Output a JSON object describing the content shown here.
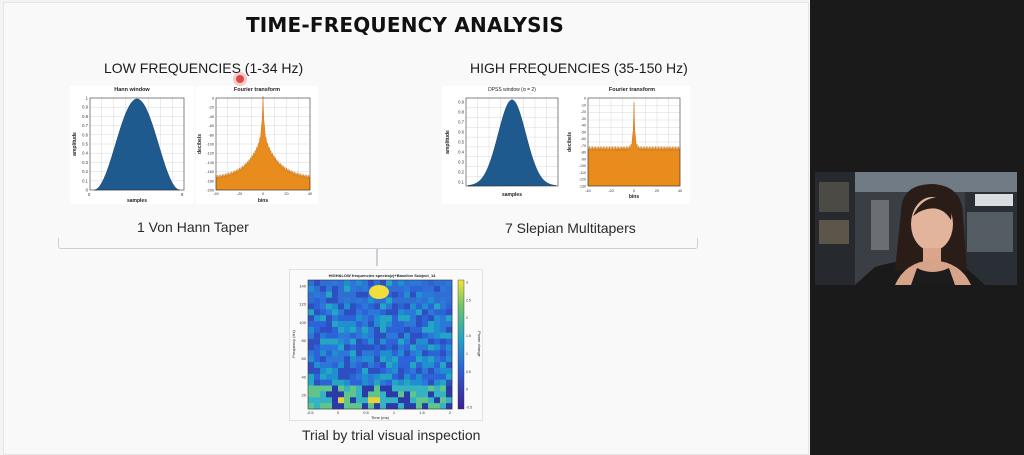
{
  "slide": {
    "title": "TIME-FREQUENCY ANALYSIS",
    "low_header": "LOW FREQUENCIES (1-34 Hz)",
    "high_header": "HIGH FREQUENCIES (35-150 Hz)",
    "low_caption": "1 Von Hann Taper",
    "high_caption": "7 Slepian Multitapers",
    "bottom_caption": "Trial by trial visual inspection"
  },
  "plots": {
    "hann": {
      "title": "Hann window",
      "ylabel": "amplitude",
      "xlabel": "samples",
      "yticks": [
        "1",
        "0.9",
        "0.8",
        "0.7",
        "0.6",
        "0.5",
        "0.4",
        "0.3",
        "0.2",
        "0.1",
        "0"
      ],
      "xticks": [
        "0",
        "8"
      ]
    },
    "fft_low": {
      "title": "Fourier transform",
      "ylabel": "decibels",
      "xlabel": "bins",
      "yticks": [
        "0",
        "-20",
        "-40",
        "-60",
        "-80",
        "-100",
        "-120",
        "-140",
        "-160",
        "-180",
        "-200"
      ],
      "xticks": [
        "-40",
        "-20",
        "0",
        "20",
        "40"
      ]
    },
    "dpss": {
      "title": "DPSS window (α = 2)",
      "ylabel": "amplitude",
      "xlabel": "samples",
      "yticks": [
        "0.9",
        "0.8",
        "0.7",
        "0.6",
        "0.5",
        "0.4",
        "0.3",
        "0.2",
        "0.1"
      ],
      "xticks": []
    },
    "fft_high": {
      "title": "Fourier transform",
      "ylabel": "decibels",
      "xlabel": "bins",
      "yticks": [
        "0",
        "-10",
        "-20",
        "-30",
        "-40",
        "-50",
        "-60",
        "-70",
        "-80",
        "-90",
        "-100",
        "-110",
        "-120",
        "-130"
      ],
      "xticks": [
        "-40",
        "-20",
        "0",
        "20",
        "40"
      ]
    },
    "spectrogram": {
      "title": "HIGH&LOW frequencies spectra(z)+Baseline Subject_14",
      "xlabel": "Time (ms)",
      "ylabel": "Frequency (Hz)",
      "cbar_label": "Power change",
      "yticks": [
        "140",
        "120",
        "100",
        "80",
        "60",
        "40",
        "20"
      ],
      "xticks": [
        "-0.5",
        "0",
        "0.5",
        "1",
        "1.5",
        "2"
      ],
      "cbar_ticks": [
        "3",
        "2.5",
        "2",
        "1.5",
        "1",
        "0.5",
        "0",
        "-0.5"
      ]
    }
  },
  "colors": {
    "blue_fill": "#1f5a8f",
    "orange_fill": "#e98c1e",
    "accent_dot": "#e04848"
  }
}
